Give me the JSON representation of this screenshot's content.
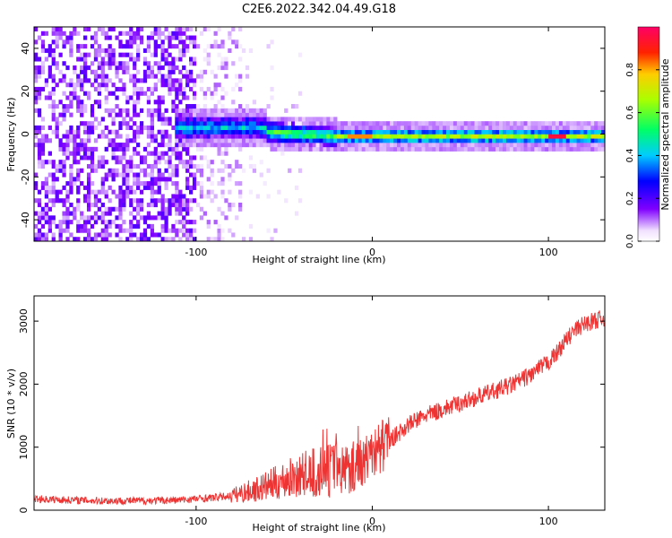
{
  "figure_title": "C2E6.2022.342.04.49.G18",
  "chart_data": [
    {
      "type": "heatmap",
      "xlabel": "Height of straight line (km)",
      "ylabel": "Frequency (Hz)",
      "xlim": [
        -192,
        132
      ],
      "ylim": [
        -50,
        50
      ],
      "x_ticks": [
        -100,
        0,
        100
      ],
      "y_ticks": [
        -40,
        -20,
        0,
        20,
        40
      ],
      "colorbar": {
        "label": "Normalized spectral amplitude",
        "range": [
          0,
          1
        ],
        "ticks": [
          0.0,
          0.2,
          0.4,
          0.6,
          0.8
        ],
        "tick_labels": [
          "0.0",
          "0.2",
          "0.4",
          "0.6",
          "0.8"
        ]
      },
      "features": [
        {
          "x_range": [
            -192,
            -100
          ],
          "description": "broadband noise across full frequency range",
          "amplitude": 0.15
        },
        {
          "x_range": [
            -112,
            -60
          ],
          "center_freq": 3,
          "amplitude": 0.35
        },
        {
          "x_range": [
            -60,
            -20
          ],
          "center_freq": 0,
          "amplitude": 0.55
        },
        {
          "x_range": [
            -20,
            132
          ],
          "center_freq": -1,
          "amplitude": 0.6
        },
        {
          "x_range": [
            100,
            110
          ],
          "center_freq": -1,
          "amplitude": 0.95
        }
      ]
    },
    {
      "type": "line",
      "xlabel": "Height of straight line (km)",
      "ylabel": "SNR (10 * v/v)",
      "xlim": [
        -192,
        132
      ],
      "ylim": [
        0,
        3400
      ],
      "x_ticks": [
        -100,
        0,
        100
      ],
      "y_ticks": [
        0,
        1000,
        2000,
        3000
      ],
      "color": "#ee3333",
      "series": [
        {
          "x": [
            -192,
            -170,
            -150,
            -130,
            -110,
            -100,
            -90,
            -80,
            -70,
            -60,
            -50,
            -40,
            -30,
            -20,
            -10,
            0,
            10,
            20,
            30,
            40,
            50,
            60,
            70,
            80,
            90,
            100,
            105,
            110,
            115,
            120,
            125,
            132
          ],
          "values": [
            180,
            160,
            150,
            150,
            160,
            180,
            200,
            230,
            300,
            380,
            480,
            560,
            600,
            650,
            700,
            900,
            1100,
            1350,
            1500,
            1600,
            1700,
            1800,
            1900,
            2000,
            2150,
            2350,
            2500,
            2700,
            2850,
            2950,
            3000,
            3050
          ]
        }
      ]
    }
  ]
}
